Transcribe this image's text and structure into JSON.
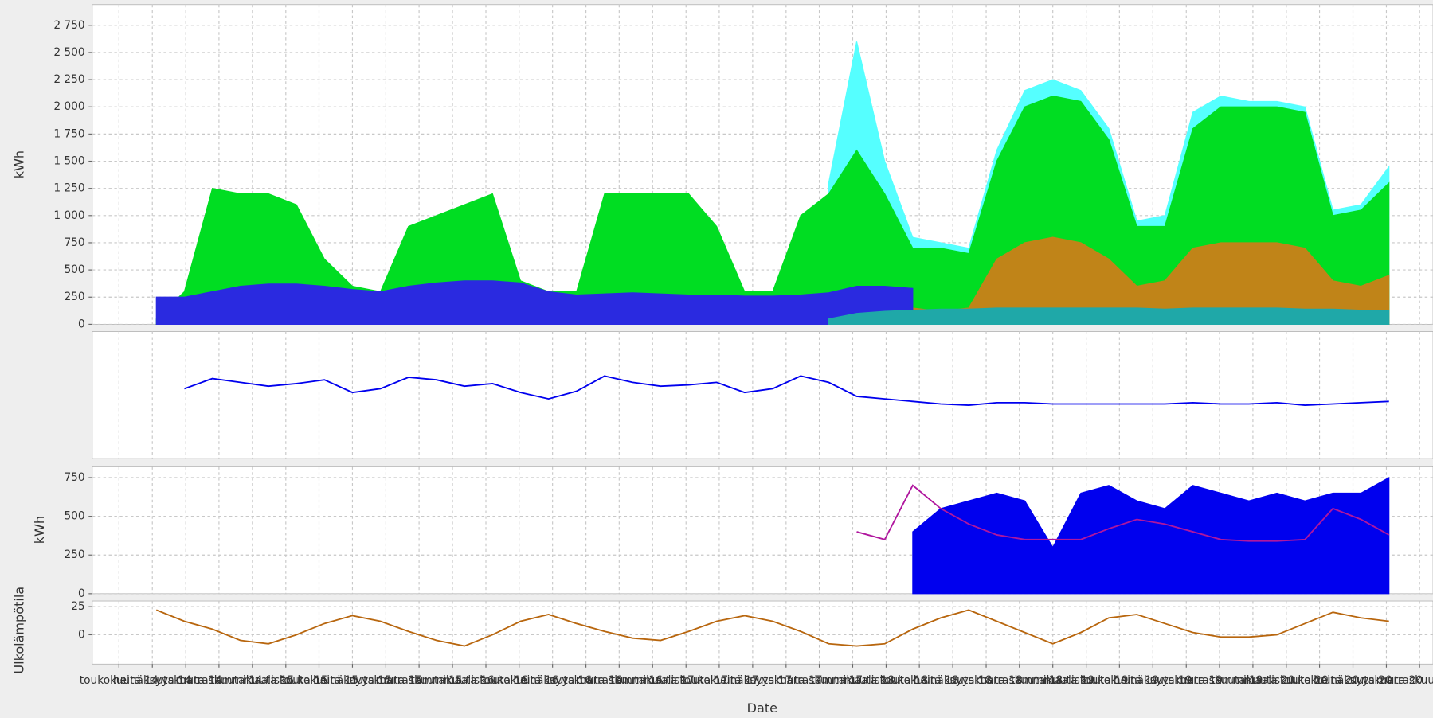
{
  "chart_data": [
    {
      "type": "line",
      "ylabel": "kWh",
      "ylim": [
        0,
        2940
      ],
      "yticks": [
        0,
        {
          "value": 250,
          "label": "250"
        },
        {
          "value": 500,
          "label": "500"
        },
        {
          "value": 750,
          "label": "750"
        },
        {
          "value": 1000,
          "label": "1 000"
        },
        {
          "value": 1250,
          "label": "1 250"
        },
        {
          "value": 1500,
          "label": "1 500"
        },
        {
          "value": 1750,
          "label": "1 750"
        },
        {
          "value": 2000,
          "label": "2 000"
        },
        {
          "value": 2250,
          "label": "2 250"
        },
        {
          "value": 2500,
          "label": "2 500"
        },
        {
          "value": 2750,
          "label": "2 750"
        }
      ],
      "grid": true,
      "series": [
        {
          "type": "area",
          "color": "#55ffff",
          "values": [
            null,
            null,
            null,
            null,
            null,
            null,
            null,
            null,
            null,
            null,
            null,
            null,
            null,
            null,
            null,
            null,
            null,
            null,
            null,
            null,
            null,
            null,
            null,
            null,
            1300,
            2600,
            1500,
            800,
            750,
            700,
            1600,
            2150,
            2250,
            2150,
            1800,
            950,
            1000,
            1950,
            2100,
            2050,
            2050,
            2000,
            1050,
            1100,
            1450
          ]
        },
        {
          "type": "area",
          "color": "#00dd22",
          "values": [
            50,
            300,
            1250,
            1200,
            1200,
            1100,
            600,
            350,
            300,
            900,
            1000,
            1100,
            1200,
            400,
            300,
            300,
            1200,
            1200,
            1200,
            1200,
            900,
            300,
            300,
            1000,
            1200,
            1600,
            1200,
            700,
            700,
            650,
            1500,
            2000,
            2100,
            2050,
            1700,
            900,
            900,
            1800,
            2000,
            2000,
            2000,
            1950,
            1000,
            1050,
            1300
          ]
        },
        {
          "type": "area",
          "color": "#c08418",
          "values": [
            null,
            null,
            null,
            null,
            null,
            null,
            null,
            null,
            null,
            null,
            null,
            null,
            null,
            null,
            null,
            null,
            null,
            null,
            null,
            null,
            null,
            null,
            null,
            null,
            null,
            300,
            300,
            150,
            120,
            150,
            600,
            750,
            800,
            750,
            600,
            350,
            400,
            700,
            750,
            750,
            750,
            700,
            400,
            350,
            450
          ]
        },
        {
          "type": "area",
          "color": "#2a2ae0",
          "values": [
            250,
            250,
            300,
            350,
            370,
            370,
            350,
            320,
            300,
            350,
            380,
            400,
            400,
            380,
            300,
            270,
            280,
            290,
            280,
            270,
            270,
            260,
            260,
            270,
            290,
            350,
            350,
            330,
            null,
            null,
            null,
            null,
            null,
            null,
            null,
            null,
            null,
            null,
            null,
            null,
            null,
            null,
            null,
            null,
            null
          ]
        },
        {
          "type": "area",
          "color": "#1fa8a8",
          "values": [
            null,
            null,
            null,
            null,
            null,
            null,
            null,
            null,
            null,
            null,
            null,
            null,
            null,
            null,
            null,
            null,
            null,
            null,
            null,
            null,
            null,
            null,
            null,
            null,
            50,
            100,
            120,
            130,
            140,
            140,
            150,
            150,
            150,
            150,
            150,
            150,
            140,
            150,
            150,
            150,
            150,
            140,
            140,
            130,
            130
          ]
        }
      ]
    },
    {
      "type": "line",
      "ylim": [
        0,
        100
      ],
      "grid": true,
      "series": [
        {
          "type": "line",
          "color": "#0000ee",
          "values": [
            null,
            55,
            63,
            60,
            57,
            59,
            62,
            52,
            55,
            64,
            62,
            57,
            59,
            52,
            47,
            53,
            65,
            60,
            57,
            58,
            60,
            52,
            55,
            65,
            60,
            49,
            47,
            45,
            43,
            42,
            44,
            44,
            43,
            43,
            43,
            43,
            43,
            44,
            43,
            43,
            44,
            42,
            43,
            44,
            45
          ]
        }
      ]
    },
    {
      "type": "line",
      "ylabel": "kWh",
      "ylim": [
        0,
        820
      ],
      "yticks": [
        0,
        250,
        500,
        750
      ],
      "grid": true,
      "series": [
        {
          "type": "area",
          "color": "#0000ee",
          "values": [
            null,
            null,
            null,
            null,
            null,
            null,
            null,
            null,
            null,
            null,
            null,
            null,
            null,
            null,
            null,
            null,
            null,
            null,
            null,
            null,
            null,
            null,
            null,
            null,
            null,
            null,
            null,
            400,
            550,
            600,
            650,
            600,
            300,
            650,
            700,
            600,
            550,
            700,
            650,
            600,
            650,
            600,
            650,
            650,
            750
          ]
        },
        {
          "type": "line",
          "color": "#b0169e",
          "values": [
            null,
            null,
            null,
            null,
            null,
            null,
            null,
            null,
            null,
            null,
            null,
            null,
            null,
            null,
            null,
            null,
            null,
            null,
            null,
            null,
            null,
            null,
            null,
            null,
            null,
            400,
            350,
            700,
            550,
            450,
            380,
            350,
            350,
            350,
            420,
            480,
            450,
            400,
            350,
            340,
            340,
            350,
            550,
            480,
            380
          ]
        }
      ]
    },
    {
      "type": "line",
      "ylabel": "Ulkolämpötila",
      "xlabel": "Date",
      "ylim": [
        -26,
        30
      ],
      "yticks": [
        0,
        25
      ],
      "grid": true,
      "xlim": [
        2014.2,
        2020.9
      ],
      "x": [
        2014.52,
        2014.66,
        2014.8,
        2014.94,
        2015.08,
        2015.22,
        2015.36,
        2015.5,
        2015.64,
        2015.78,
        2015.92,
        2016.06,
        2016.2,
        2016.34,
        2016.48,
        2016.62,
        2016.76,
        2016.9,
        2017.04,
        2017.18,
        2017.32,
        2017.46,
        2017.6,
        2017.74,
        2017.88,
        2018.02,
        2018.16,
        2018.3,
        2018.44,
        2018.58,
        2018.72,
        2018.86,
        2019,
        2019.14,
        2019.28,
        2019.42,
        2019.56,
        2019.7,
        2019.84,
        2019.98,
        2020.12,
        2020.26,
        2020.4,
        2020.54,
        2020.68
      ],
      "xticks": [
        {
          "value": 2014.333,
          "label": "toukokuuta 14"
        },
        {
          "value": 2014.5,
          "label": "heinäkuuta 14"
        },
        {
          "value": 2014.667,
          "label": "syyskuuta 14"
        },
        {
          "value": 2014.833,
          "label": "marraskuuta 14"
        },
        {
          "value": 2015,
          "label": "tammikuuta 15"
        },
        {
          "value": 2015.167,
          "label": "maaliskuuta 15"
        },
        {
          "value": 2015.333,
          "label": "toukokuuta 15"
        },
        {
          "value": 2015.5,
          "label": "heinäkuuta 15"
        },
        {
          "value": 2015.667,
          "label": "syyskuuta 15"
        },
        {
          "value": 2015.833,
          "label": "marraskuuta 15"
        },
        {
          "value": 2016,
          "label": "tammikuuta 16"
        },
        {
          "value": 2016.167,
          "label": "maaliskuuta 16"
        },
        {
          "value": 2016.333,
          "label": "toukokuuta 16"
        },
        {
          "value": 2016.5,
          "label": "heinäkuuta 16"
        },
        {
          "value": 2016.667,
          "label": "syyskuuta 16"
        },
        {
          "value": 2016.833,
          "label": "marraskuuta 16"
        },
        {
          "value": 2017,
          "label": "tammikuuta 17"
        },
        {
          "value": 2017.167,
          "label": "maaliskuuta 17"
        },
        {
          "value": 2017.333,
          "label": "toukokuuta 17"
        },
        {
          "value": 2017.5,
          "label": "heinäkuuta 17"
        },
        {
          "value": 2017.667,
          "label": "syyskuuta 17"
        },
        {
          "value": 2017.833,
          "label": "marraskuuta 17"
        },
        {
          "value": 2018,
          "label": "tammikuuta 18"
        },
        {
          "value": 2018.167,
          "label": "maaliskuuta 18"
        },
        {
          "value": 2018.333,
          "label": "toukokuuta 18"
        },
        {
          "value": 2018.5,
          "label": "heinäkuuta 18"
        },
        {
          "value": 2018.667,
          "label": "syyskuuta 18"
        },
        {
          "value": 2018.833,
          "label": "marraskuuta 18"
        },
        {
          "value": 2019,
          "label": "tammikuuta 19"
        },
        {
          "value": 2019.167,
          "label": "maaliskuuta 19"
        },
        {
          "value": 2019.333,
          "label": "toukokuuta 19"
        },
        {
          "value": 2019.5,
          "label": "heinäkuuta 19"
        },
        {
          "value": 2019.667,
          "label": "syyskuuta 19"
        },
        {
          "value": 2019.833,
          "label": "marraskuuta 19"
        },
        {
          "value": 2020,
          "label": "tammikuuta 20"
        },
        {
          "value": 2020.167,
          "label": "maaliskuuta 20"
        },
        {
          "value": 2020.333,
          "label": "toukokuuta 20"
        },
        {
          "value": 2020.5,
          "label": "heinäkuuta 20"
        },
        {
          "value": 2020.667,
          "label": "syyskuuta 20"
        },
        {
          "value": 2020.833,
          "label": "marraskuuta 20"
        }
      ],
      "series": [
        {
          "type": "line",
          "color": "#b8660e",
          "values": [
            22,
            12,
            5,
            -5,
            -8,
            0,
            10,
            17,
            12,
            3,
            -5,
            -10,
            0,
            12,
            18,
            10,
            3,
            -3,
            -5,
            3,
            12,
            17,
            12,
            3,
            -8,
            -10,
            -8,
            5,
            15,
            22,
            12,
            2,
            -8,
            2,
            15,
            18,
            10,
            2,
            -2,
            -2,
            0,
            10,
            20,
            15,
            12
          ]
        }
      ]
    }
  ]
}
